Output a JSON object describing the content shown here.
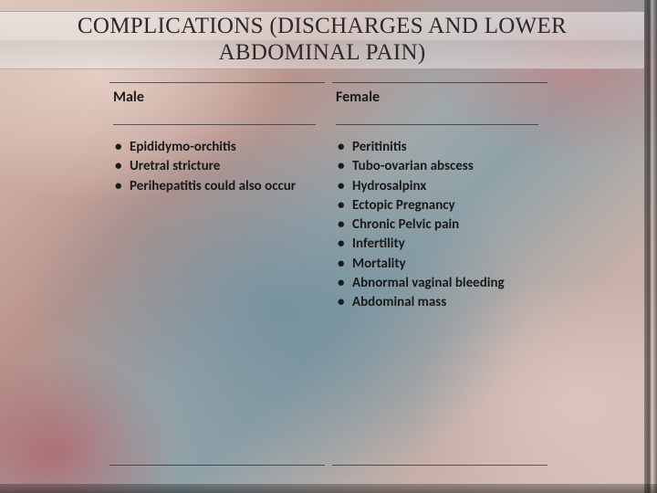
{
  "slide": {
    "title": "COMPLICATIONS (DISCHARGES AND LOWER ABDOMINAL PAIN)",
    "title_font": "Times New Roman",
    "title_fontsize": 25,
    "title_color": "#2a2a2a",
    "body_font": "Calibri",
    "body_fontsize": 15,
    "body_color": "#1a1a1a",
    "columns": [
      {
        "heading": "Male",
        "items": [
          "Epididymo-orchitis",
          "Uretral stricture",
          "Perihepatitis could also occur"
        ]
      },
      {
        "heading": "Female",
        "items": [
          "Peritinitis",
          "Tubo-ovarian abscess",
          "Hydrosalpinx",
          "Ectopic Pregnancy",
          "Chronic Pelvic pain",
          "Infertility",
          "Mortality",
          "Abnormal vaginal bleeding",
          "Abdominal mass"
        ]
      }
    ],
    "rule_color": "#3a3a3a",
    "title_bar_bg": "#ececec",
    "frame_color": "#2b2b2b"
  }
}
